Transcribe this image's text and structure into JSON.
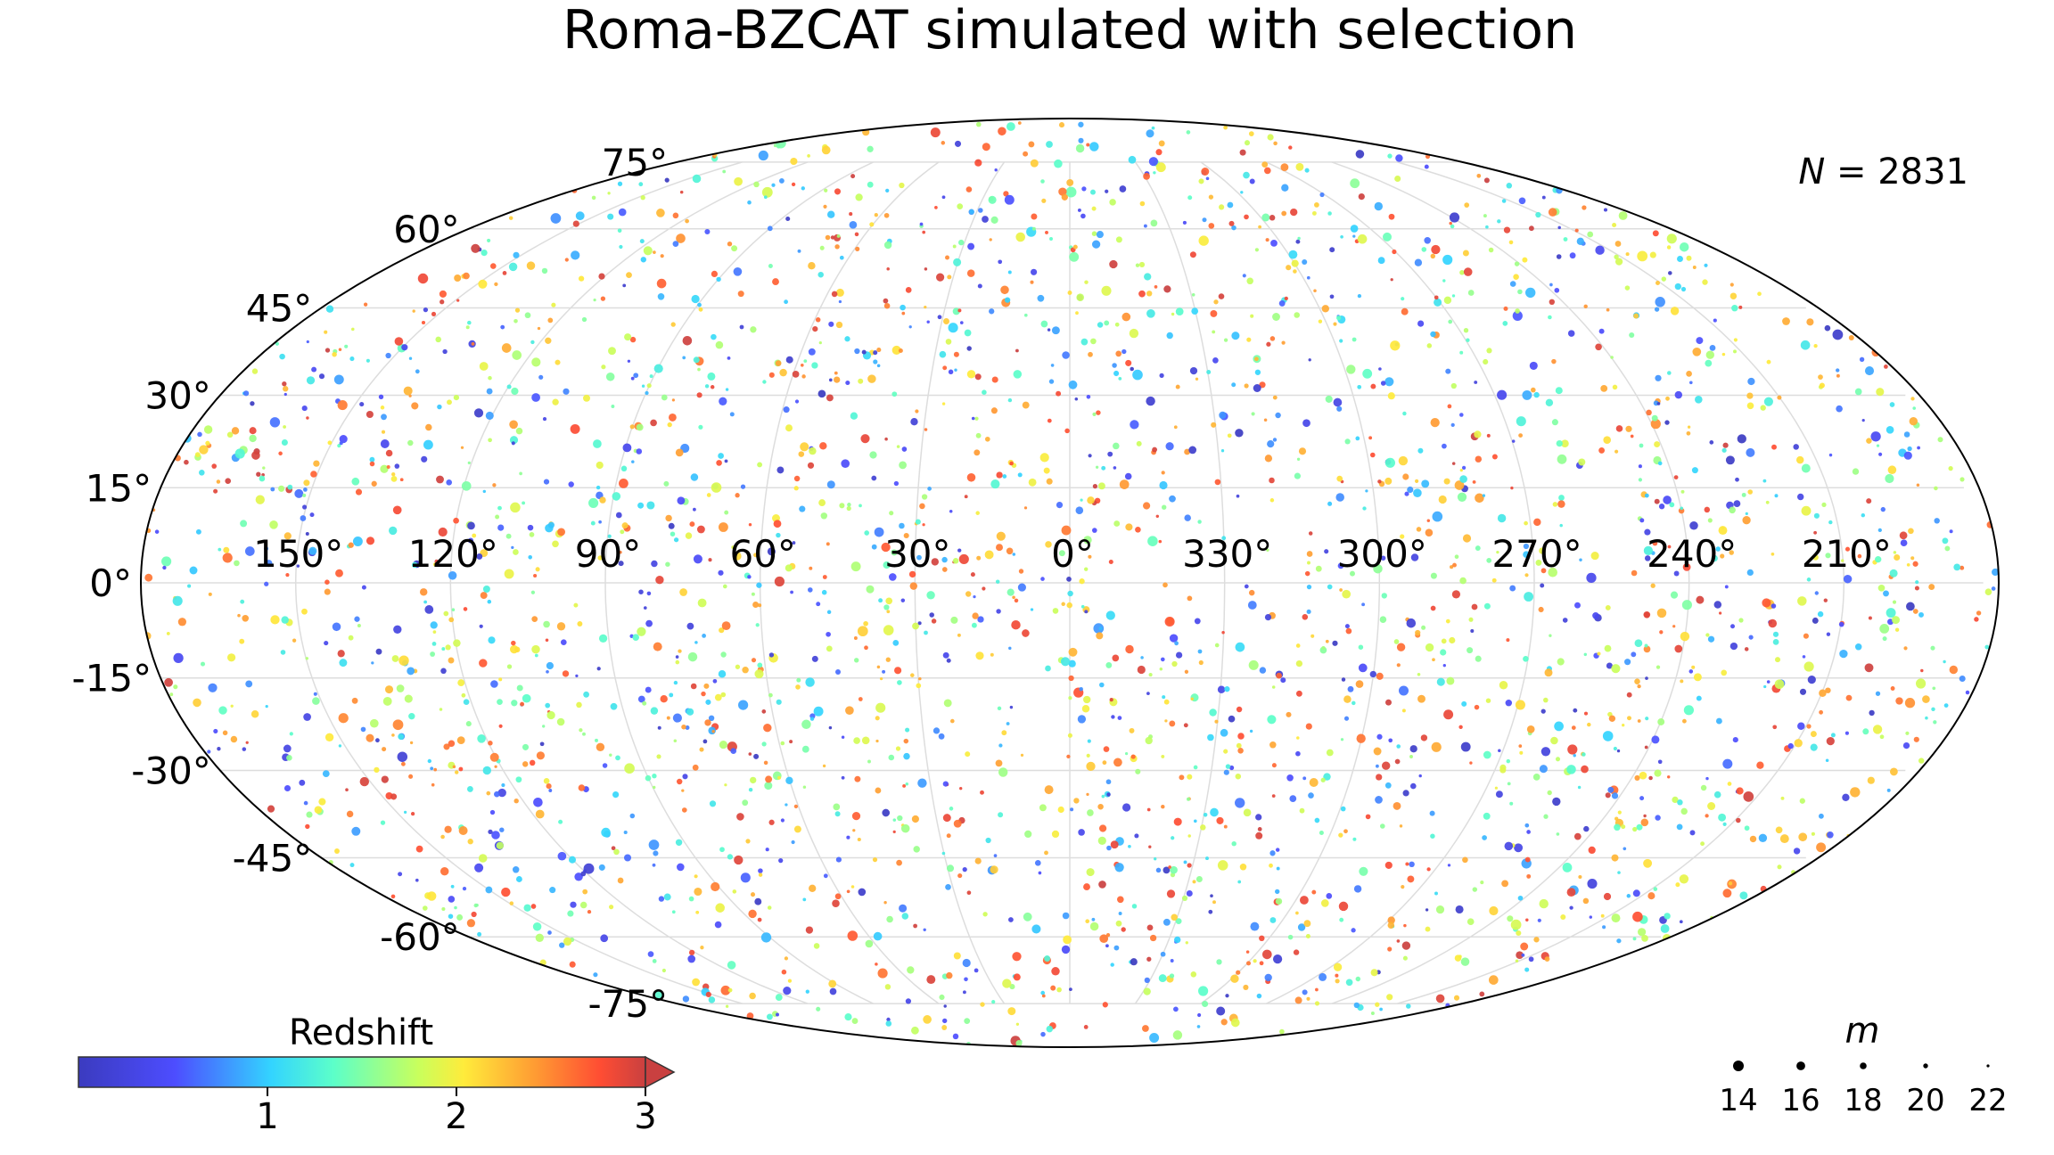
{
  "chart_data": {
    "type": "scatter",
    "projection": "mollweide",
    "title": "Roma-BZCAT simulated with selection",
    "annotation": "N = 2831",
    "n_points": 2831,
    "lon_ticks": [
      "150°",
      "120°",
      "90°",
      "60°",
      "30°",
      "0°",
      "330°",
      "300°",
      "270°",
      "240°",
      "210°"
    ],
    "lon_tick_values": [
      150,
      120,
      90,
      60,
      30,
      0,
      330,
      300,
      270,
      240,
      210
    ],
    "lat_ticks": [
      "75°",
      "60°",
      "45°",
      "30°",
      "15°",
      "0°",
      "-15°",
      "-30°",
      "-45°",
      "-60°",
      "-75°"
    ],
    "lat_tick_values": [
      75,
      60,
      45,
      30,
      15,
      0,
      -15,
      -30,
      -45,
      -60,
      -75
    ],
    "grid": true,
    "colorbar": {
      "label": "Redshift",
      "ticks": [
        "1",
        "2",
        "3"
      ],
      "tick_values": [
        1,
        2,
        3
      ],
      "range": [
        0,
        3
      ],
      "extend": "max",
      "colormap": "jet",
      "placement": "bottom-left"
    },
    "size_legend": {
      "label": "m",
      "entries": [
        "14",
        "16",
        "18",
        "20",
        "22"
      ],
      "values": [
        14,
        16,
        18,
        20,
        22
      ],
      "placement": "bottom-right"
    },
    "colors": {
      "frame": "#000000",
      "grid": "#dddddd"
    }
  }
}
